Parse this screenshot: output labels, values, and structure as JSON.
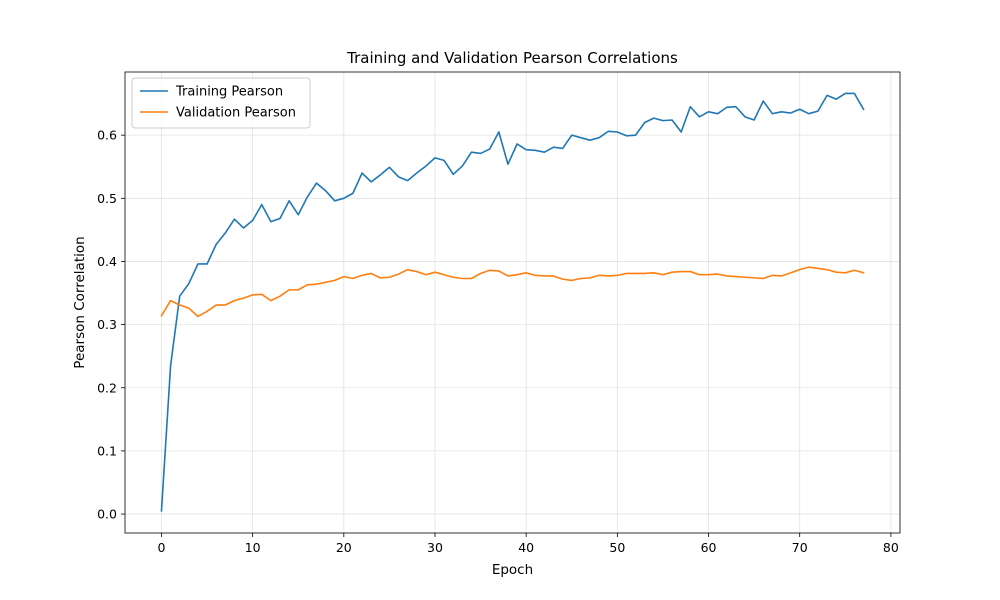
{
  "chart_data": {
    "type": "line",
    "title": "Training and Validation Pearson Correlations",
    "xlabel": "Epoch",
    "ylabel": "Pearson Correlation",
    "xlim": [
      -4,
      81
    ],
    "ylim": [
      -0.03,
      0.7
    ],
    "xticks": [
      0,
      10,
      20,
      30,
      40,
      50,
      60,
      70,
      80
    ],
    "yticks": [
      0.0,
      0.1,
      0.2,
      0.3,
      0.4,
      0.5,
      0.6
    ],
    "ytick_labels": [
      "0.0",
      "0.1",
      "0.2",
      "0.3",
      "0.4",
      "0.5",
      "0.6"
    ],
    "grid": true,
    "legend_position": "upper-left",
    "x": [
      0,
      1,
      2,
      3,
      4,
      5,
      6,
      7,
      8,
      9,
      10,
      11,
      12,
      13,
      14,
      15,
      16,
      17,
      18,
      19,
      20,
      21,
      22,
      23,
      24,
      25,
      26,
      27,
      28,
      29,
      30,
      31,
      32,
      33,
      34,
      35,
      36,
      37,
      38,
      39,
      40,
      41,
      42,
      43,
      44,
      45,
      46,
      47,
      48,
      49,
      50,
      51,
      52,
      53,
      54,
      55,
      56,
      57,
      58,
      59,
      60,
      61,
      62,
      63,
      64,
      65,
      66,
      67,
      68,
      69,
      70,
      71,
      72,
      73,
      74,
      75,
      76,
      77
    ],
    "series": [
      {
        "name": "Training Pearson",
        "color": "#1f77b4",
        "values": [
          0.005,
          0.235,
          0.345,
          0.365,
          0.396,
          0.396,
          0.427,
          0.445,
          0.467,
          0.453,
          0.465,
          0.49,
          0.463,
          0.468,
          0.496,
          0.474,
          0.502,
          0.524,
          0.512,
          0.496,
          0.5,
          0.508,
          0.54,
          0.526,
          0.537,
          0.549,
          0.534,
          0.528,
          0.54,
          0.551,
          0.564,
          0.56,
          0.538,
          0.551,
          0.573,
          0.571,
          0.578,
          0.605,
          0.554,
          0.586,
          0.577,
          0.576,
          0.573,
          0.581,
          0.579,
          0.6,
          0.596,
          0.592,
          0.596,
          0.606,
          0.605,
          0.599,
          0.6,
          0.62,
          0.627,
          0.623,
          0.624,
          0.605,
          0.645,
          0.629,
          0.637,
          0.634,
          0.644,
          0.645,
          0.629,
          0.624,
          0.654,
          0.634,
          0.637,
          0.635,
          0.641,
          0.634,
          0.638,
          0.663,
          0.657,
          0.666,
          0.666,
          0.641
        ]
      },
      {
        "name": "Validation Pearson",
        "color": "#ff7f0e",
        "values": [
          0.314,
          0.338,
          0.331,
          0.326,
          0.313,
          0.321,
          0.331,
          0.331,
          0.338,
          0.342,
          0.347,
          0.348,
          0.338,
          0.345,
          0.355,
          0.355,
          0.363,
          0.364,
          0.367,
          0.37,
          0.376,
          0.373,
          0.378,
          0.381,
          0.374,
          0.375,
          0.38,
          0.387,
          0.384,
          0.379,
          0.383,
          0.379,
          0.375,
          0.373,
          0.373,
          0.381,
          0.386,
          0.385,
          0.377,
          0.379,
          0.382,
          0.378,
          0.377,
          0.377,
          0.372,
          0.37,
          0.373,
          0.374,
          0.378,
          0.377,
          0.378,
          0.381,
          0.381,
          0.381,
          0.382,
          0.379,
          0.383,
          0.384,
          0.384,
          0.379,
          0.379,
          0.38,
          0.377,
          0.376,
          0.375,
          0.374,
          0.373,
          0.378,
          0.377,
          0.382,
          0.387,
          0.391,
          0.389,
          0.387,
          0.383,
          0.382,
          0.386,
          0.382
        ]
      }
    ]
  }
}
